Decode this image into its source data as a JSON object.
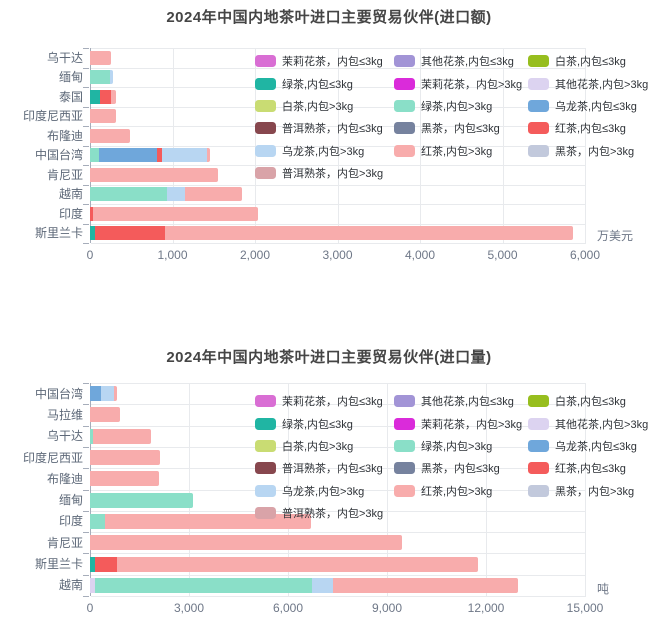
{
  "page": {
    "background": "#ffffff"
  },
  "legend_items": [
    {
      "label": "茉莉花茶，内包≤3kg",
      "color": "#D96ED4"
    },
    {
      "label": "其他花茶,内包≤3kg",
      "color": "#A294D6"
    },
    {
      "label": "白茶,内包≤3kg",
      "color": "#97BE1E"
    },
    {
      "label": "绿茶,内包≤3kg",
      "color": "#20B5A3"
    },
    {
      "label": "茉莉花茶，内包>3kg",
      "color": "#DA2BDA"
    },
    {
      "label": "其他花茶,内包>3kg",
      "color": "#DCD3F0"
    },
    {
      "label": "白茶,内包>3kg",
      "color": "#C9DC73"
    },
    {
      "label": "绿茶,内包>3kg",
      "color": "#8ADFC8"
    },
    {
      "label": "乌龙茶,内包≤3kg",
      "color": "#6FA7DB"
    },
    {
      "label": "普洱熟茶，内包≤3kg",
      "color": "#87474E"
    },
    {
      "label": "黑茶，内包≤3kg",
      "color": "#76829E"
    },
    {
      "label": "红茶,内包≤3kg",
      "color": "#F45B5B"
    },
    {
      "label": "乌龙茶,内包>3kg",
      "color": "#B8D6F2"
    },
    {
      "label": "红茶,内包>3kg",
      "color": "#F8ACAC"
    },
    {
      "label": "黑茶，内包>3kg",
      "color": "#C2C9DC"
    },
    {
      "label": "普洱熟茶，内包>3kg",
      "color": "#D9A3A8"
    }
  ],
  "chart_data": [
    {
      "type": "bar",
      "orientation": "horizontal",
      "stacked": true,
      "grid": true,
      "legend_position": "top-right-overlay",
      "title": "2024年中国内地茶叶进口主要贸易伙伴(进口额)",
      "unit": "万美元",
      "xlabel": "万美元",
      "ylabel": "",
      "axis": {
        "max": 6000,
        "tick_values": [
          0,
          1000,
          2000,
          3000,
          4000,
          5000,
          6000
        ],
        "tick_labels": [
          "0",
          "1,000",
          "2,000",
          "3,000",
          "4,000",
          "5,000",
          "6,000"
        ]
      },
      "categories": [
        "乌干达",
        "缅甸",
        "泰国",
        "印度尼西亚",
        "布隆迪",
        "中国台湾",
        "肯尼亚",
        "越南",
        "印度",
        "斯里兰卡"
      ],
      "bars": [
        {
          "category": "乌干达",
          "segments": [
            {
              "series": "红茶,内包>3kg",
              "value": 250
            }
          ]
        },
        {
          "category": "缅甸",
          "segments": [
            {
              "series": "绿茶,内包>3kg",
              "value": 245
            },
            {
              "series": "乌龙茶,内包>3kg",
              "value": 35
            }
          ]
        },
        {
          "category": "泰国",
          "segments": [
            {
              "series": "绿茶,内包≤3kg",
              "value": 120
            },
            {
              "series": "红茶,内包≤3kg",
              "value": 140
            },
            {
              "series": "红茶,内包>3kg",
              "value": 50
            }
          ]
        },
        {
          "category": "印度尼西亚",
          "segments": [
            {
              "series": "红茶,内包>3kg",
              "value": 320
            }
          ]
        },
        {
          "category": "布隆迪",
          "segments": [
            {
              "series": "红茶,内包>3kg",
              "value": 480
            }
          ]
        },
        {
          "category": "中国台湾",
          "segments": [
            {
              "series": "绿茶,内包>3kg",
              "value": 110
            },
            {
              "series": "乌龙茶,内包≤3kg",
              "value": 700
            },
            {
              "series": "红茶,内包≤3kg",
              "value": 60
            },
            {
              "series": "乌龙茶,内包>3kg",
              "value": 550
            },
            {
              "series": "红茶,内包>3kg",
              "value": 40
            }
          ]
        },
        {
          "category": "肯尼亚",
          "segments": [
            {
              "series": "红茶,内包>3kg",
              "value": 1550
            }
          ]
        },
        {
          "category": "越南",
          "segments": [
            {
              "series": "绿茶,内包>3kg",
              "value": 930
            },
            {
              "series": "乌龙茶,内包>3kg",
              "value": 220
            },
            {
              "series": "红茶,内包>3kg",
              "value": 690
            }
          ]
        },
        {
          "category": "印度",
          "segments": [
            {
              "series": "红茶,内包≤3kg",
              "value": 40
            },
            {
              "series": "红茶,内包>3kg",
              "value": 2000
            }
          ]
        },
        {
          "category": "斯里兰卡",
          "segments": [
            {
              "series": "绿茶,内包≤3kg",
              "value": 60
            },
            {
              "series": "红茶,内包≤3kg",
              "value": 850
            },
            {
              "series": "红茶,内包>3kg",
              "value": 4950
            }
          ]
        }
      ]
    },
    {
      "type": "bar",
      "orientation": "horizontal",
      "stacked": true,
      "grid": true,
      "legend_position": "top-right-overlay",
      "title": "2024年中国内地茶叶进口主要贸易伙伴(进口量)",
      "unit": "吨",
      "xlabel": "吨",
      "ylabel": "",
      "axis": {
        "max": 15000,
        "tick_values": [
          0,
          3000,
          6000,
          9000,
          12000,
          15000
        ],
        "tick_labels": [
          "0",
          "3,000",
          "6,000",
          "9,000",
          "12,000",
          "15,000"
        ]
      },
      "categories": [
        "中国台湾",
        "马拉维",
        "乌干达",
        "印度尼西亚",
        "布隆迪",
        "缅甸",
        "印度",
        "肯尼亚",
        "斯里兰卡",
        "越南"
      ],
      "bars": [
        {
          "category": "中国台湾",
          "segments": [
            {
              "series": "乌龙茶,内包≤3kg",
              "value": 330
            },
            {
              "series": "乌龙茶,内包>3kg",
              "value": 390
            },
            {
              "series": "红茶,内包>3kg",
              "value": 100
            }
          ]
        },
        {
          "category": "马拉维",
          "segments": [
            {
              "series": "红茶,内包>3kg",
              "value": 900
            }
          ]
        },
        {
          "category": "乌干达",
          "segments": [
            {
              "series": "绿茶,内包>3kg",
              "value": 80
            },
            {
              "series": "红茶,内包>3kg",
              "value": 1770
            }
          ]
        },
        {
          "category": "印度尼西亚",
          "segments": [
            {
              "series": "红茶,内包>3kg",
              "value": 2120
            }
          ]
        },
        {
          "category": "布隆迪",
          "segments": [
            {
              "series": "红茶,内包>3kg",
              "value": 2100
            }
          ]
        },
        {
          "category": "缅甸",
          "segments": [
            {
              "series": "绿茶,内包>3kg",
              "value": 3120
            }
          ]
        },
        {
          "category": "印度",
          "segments": [
            {
              "series": "绿茶,内包>3kg",
              "value": 450
            },
            {
              "series": "红茶,内包>3kg",
              "value": 6250
            }
          ]
        },
        {
          "category": "肯尼亚",
          "segments": [
            {
              "series": "红茶,内包>3kg",
              "value": 9450
            }
          ]
        },
        {
          "category": "斯里兰卡",
          "segments": [
            {
              "series": "绿茶,内包≤3kg",
              "value": 150
            },
            {
              "series": "红茶,内包≤3kg",
              "value": 670
            },
            {
              "series": "红茶,内包>3kg",
              "value": 10940
            }
          ]
        },
        {
          "category": "越南",
          "segments": [
            {
              "series": "其他花茶,内包>3kg",
              "value": 150
            },
            {
              "series": "绿茶,内包>3kg",
              "value": 6580
            },
            {
              "series": "乌龙茶,内包>3kg",
              "value": 640
            },
            {
              "series": "红茶,内包>3kg",
              "value": 5600
            }
          ]
        }
      ]
    }
  ]
}
